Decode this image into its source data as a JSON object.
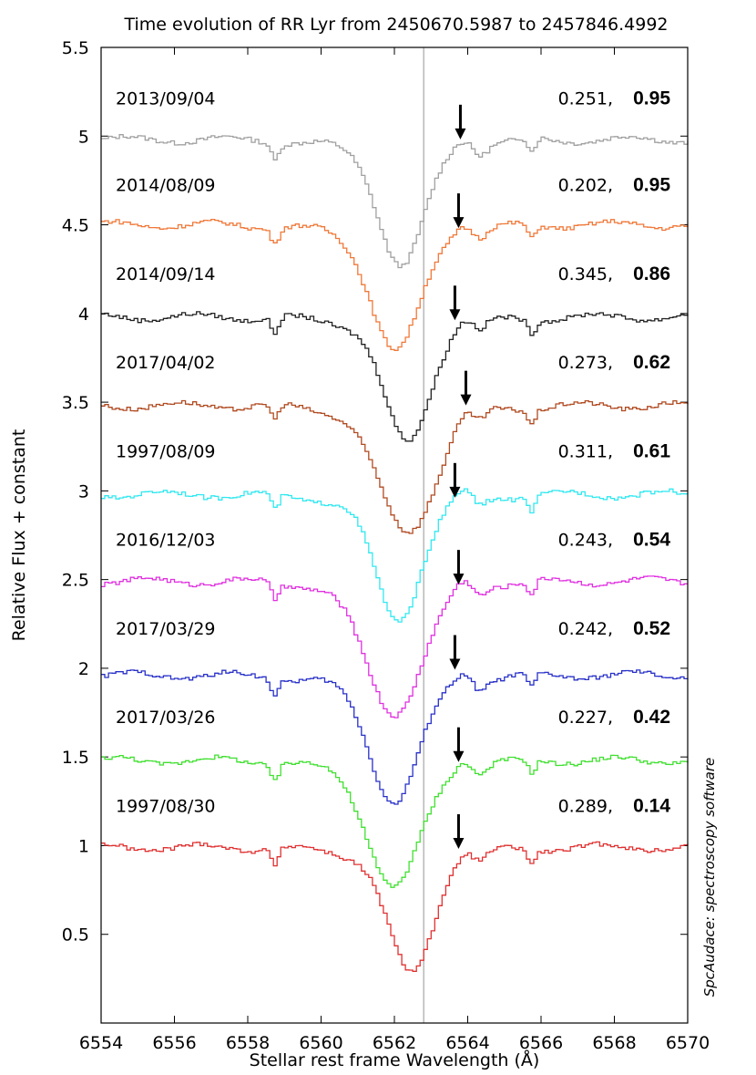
{
  "chart_data": {
    "type": "line",
    "title": "Time evolution of RR Lyr from 2450670.5987 to 2457846.4992",
    "xlabel": "Stellar rest frame Wavelength (Å)",
    "ylabel": "Relative Flux + constant",
    "xlim": [
      6554,
      6570
    ],
    "ylim": [
      0.0,
      5.5
    ],
    "x_ticks": [
      "6554",
      "6556",
      "6558",
      "6560",
      "6562",
      "6564",
      "6566",
      "6568",
      "6570"
    ],
    "y_ticks": [
      "0.5",
      "1",
      "1.5",
      "2",
      "2.5",
      "3",
      "3.5",
      "4",
      "4.5",
      "5",
      "5.5"
    ],
    "grid": false,
    "reference_line_x": 6562.8,
    "credit": "SpcAudace: spectroscopy software",
    "series": [
      {
        "name": "2013/09/04",
        "phase": "0.251,",
        "amplitude": "0.95",
        "color": "#a0a0a0",
        "continuum": 4.98,
        "depth": 0.64,
        "center": 6562.15,
        "width": 0.6,
        "arrow_x": 6563.8,
        "arrow_y": 4.92,
        "label_y": 5.18
      },
      {
        "name": "2014/08/09",
        "phase": "0.202,",
        "amplitude": "0.95",
        "color": "#f07838",
        "continuum": 4.5,
        "depth": 0.64,
        "center": 6562.0,
        "width": 0.65,
        "arrow_x": 6563.75,
        "arrow_y": 4.42,
        "label_y": 4.69
      },
      {
        "name": "2014/09/14",
        "phase": "0.345,",
        "amplitude": "0.86",
        "color": "#202020",
        "continuum": 3.98,
        "depth": 0.64,
        "center": 6562.3,
        "width": 0.6,
        "arrow_x": 6563.65,
        "arrow_y": 3.9,
        "label_y": 4.19
      },
      {
        "name": "2017/04/02",
        "phase": "0.273,",
        "amplitude": "0.62",
        "color": "#b04a20",
        "continuum": 3.48,
        "depth": 0.64,
        "center": 6562.3,
        "width": 0.75,
        "arrow_x": 6563.95,
        "arrow_y": 3.42,
        "label_y": 3.69
      },
      {
        "name": "1997/08/09",
        "phase": "0.311,",
        "amplitude": "0.61",
        "color": "#30e8f0",
        "continuum": 2.98,
        "depth": 0.64,
        "center": 6562.05,
        "width": 0.6,
        "arrow_x": 6563.65,
        "arrow_y": 2.9,
        "label_y": 3.19
      },
      {
        "name": "2016/12/03",
        "phase": "0.243,",
        "amplitude": "0.54",
        "color": "#e030e0",
        "continuum": 2.49,
        "depth": 0.67,
        "center": 6561.95,
        "width": 0.75,
        "arrow_x": 6563.75,
        "arrow_y": 2.41,
        "label_y": 2.69
      },
      {
        "name": "2017/03/29",
        "phase": "0.242,",
        "amplitude": "0.52",
        "color": "#2830c8",
        "continuum": 1.96,
        "depth": 0.64,
        "center": 6561.95,
        "width": 0.65,
        "arrow_x": 6563.65,
        "arrow_y": 1.93,
        "label_y": 2.19
      },
      {
        "name": "2017/03/26",
        "phase": "0.227,",
        "amplitude": "0.42",
        "color": "#40e030",
        "continuum": 1.48,
        "depth": 0.64,
        "center": 6561.95,
        "width": 0.7,
        "arrow_x": 6563.75,
        "arrow_y": 1.41,
        "label_y": 1.69
      },
      {
        "name": "1997/08/30",
        "phase": "0.289,",
        "amplitude": "0.14",
        "color": "#e03030",
        "continuum": 0.99,
        "depth": 0.64,
        "center": 6562.4,
        "width": 0.6,
        "arrow_x": 6563.75,
        "arrow_y": 0.92,
        "label_y": 1.19
      }
    ]
  }
}
